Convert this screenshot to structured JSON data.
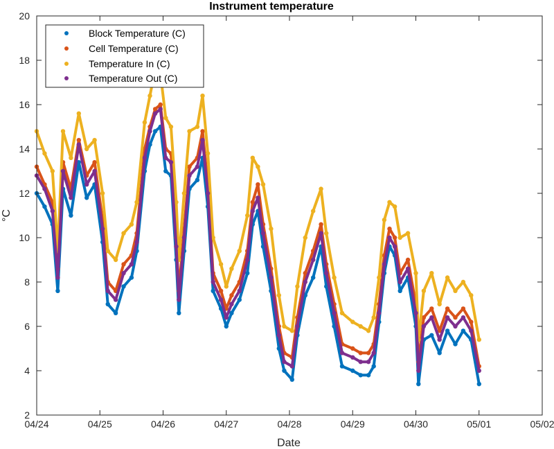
{
  "chart_data": {
    "type": "scatter",
    "title": "Instrument temperature",
    "xlabel": "Date",
    "ylabel": "°C",
    "xlim": [
      "04/24",
      "05/02"
    ],
    "ylim": [
      2,
      20
    ],
    "x_ticks": [
      "04/24",
      "04/25",
      "04/26",
      "04/27",
      "04/28",
      "04/29",
      "04/30",
      "05/01",
      "05/02"
    ],
    "y_ticks": [
      2,
      4,
      6,
      8,
      10,
      12,
      14,
      16,
      18,
      20
    ],
    "grid": false,
    "legend_position": "top-left",
    "series": [
      {
        "name": "Block Temperature (C)",
        "color": "#0072BD",
        "points": [
          [
            "04/24 00:00",
            12.0
          ],
          [
            "04/24 03:00",
            11.4
          ],
          [
            "04/24 06:00",
            10.6
          ],
          [
            "04/24 08:00",
            7.6
          ],
          [
            "04/24 10:00",
            12.2
          ],
          [
            "04/24 13:00",
            11.0
          ],
          [
            "04/24 16:00",
            13.4
          ],
          [
            "04/24 19:00",
            11.8
          ],
          [
            "04/24 22:00",
            12.4
          ],
          [
            "04/25 01:00",
            9.8
          ],
          [
            "04/25 03:00",
            7.0
          ],
          [
            "04/25 06:00",
            6.6
          ],
          [
            "04/25 09:00",
            7.8
          ],
          [
            "04/25 12:00",
            8.2
          ],
          [
            "04/25 14:00",
            9.4
          ],
          [
            "04/25 17:00",
            13.0
          ],
          [
            "04/25 19:00",
            14.2
          ],
          [
            "04/25 21:00",
            14.8
          ],
          [
            "04/25 23:00",
            15.0
          ],
          [
            "04/26 01:00",
            13.0
          ],
          [
            "04/26 03:00",
            12.8
          ],
          [
            "04/26 05:00",
            9.0
          ],
          [
            "04/26 06:00",
            6.6
          ],
          [
            "04/26 08:00",
            9.4
          ],
          [
            "04/26 10:00",
            12.2
          ],
          [
            "04/26 13:00",
            12.6
          ],
          [
            "04/26 15:00",
            13.6
          ],
          [
            "04/26 17:00",
            11.4
          ],
          [
            "04/26 19:00",
            7.6
          ],
          [
            "04/26 22:00",
            6.8
          ],
          [
            "04/27 00:00",
            6.0
          ],
          [
            "04/27 02:00",
            6.6
          ],
          [
            "04/27 05:00",
            7.2
          ],
          [
            "04/27 08:00",
            8.4
          ],
          [
            "04/27 10:00",
            10.6
          ],
          [
            "04/27 12:00",
            11.2
          ],
          [
            "04/27 14:00",
            9.6
          ],
          [
            "04/27 17:00",
            7.6
          ],
          [
            "04/27 20:00",
            5.0
          ],
          [
            "04/27 22:00",
            4.0
          ],
          [
            "04/28 01:00",
            3.6
          ],
          [
            "04/28 03:00",
            5.6
          ],
          [
            "04/28 06:00",
            7.4
          ],
          [
            "04/28 09:00",
            8.2
          ],
          [
            "04/28 12:00",
            9.6
          ],
          [
            "04/28 14:00",
            7.8
          ],
          [
            "04/28 17:00",
            6.0
          ],
          [
            "04/28 20:00",
            4.2
          ],
          [
            "04/29 00:00",
            4.0
          ],
          [
            "04/29 03:00",
            3.8
          ],
          [
            "04/29 06:00",
            3.8
          ],
          [
            "04/29 08:00",
            4.2
          ],
          [
            "04/29 10:00",
            6.2
          ],
          [
            "04/29 12:00",
            8.4
          ],
          [
            "04/29 14:00",
            9.6
          ],
          [
            "04/29 16:00",
            9.2
          ],
          [
            "04/29 18:00",
            7.6
          ],
          [
            "04/29 21:00",
            8.2
          ],
          [
            "04/30 00:00",
            6.0
          ],
          [
            "04/30 01:00",
            3.4
          ],
          [
            "04/30 03:00",
            5.4
          ],
          [
            "04/30 06:00",
            5.6
          ],
          [
            "04/30 09:00",
            4.8
          ],
          [
            "04/30 12:00",
            5.8
          ],
          [
            "04/30 15:00",
            5.2
          ],
          [
            "04/30 18:00",
            5.8
          ],
          [
            "04/30 21:00",
            5.4
          ],
          [
            "05/01 00:00",
            3.4
          ]
        ]
      },
      {
        "name": "Cell Temperature (C)",
        "color": "#D95319",
        "points": [
          [
            "04/24 00:00",
            13.2
          ],
          [
            "04/24 03:00",
            12.4
          ],
          [
            "04/24 06:00",
            11.6
          ],
          [
            "04/24 08:00",
            8.6
          ],
          [
            "04/24 10:00",
            13.4
          ],
          [
            "04/24 13:00",
            12.2
          ],
          [
            "04/24 16:00",
            14.4
          ],
          [
            "04/24 19:00",
            12.8
          ],
          [
            "04/24 22:00",
            13.4
          ],
          [
            "04/25 01:00",
            10.8
          ],
          [
            "04/25 03:00",
            8.0
          ],
          [
            "04/25 06:00",
            7.6
          ],
          [
            "04/25 09:00",
            8.8
          ],
          [
            "04/25 12:00",
            9.2
          ],
          [
            "04/25 14:00",
            10.2
          ],
          [
            "04/25 17:00",
            14.0
          ],
          [
            "04/25 19:00",
            15.0
          ],
          [
            "04/25 21:00",
            15.8
          ],
          [
            "04/25 23:00",
            16.0
          ],
          [
            "04/26 01:00",
            14.0
          ],
          [
            "04/26 03:00",
            13.8
          ],
          [
            "04/26 05:00",
            10.0
          ],
          [
            "04/26 06:00",
            7.6
          ],
          [
            "04/26 08:00",
            10.4
          ],
          [
            "04/26 10:00",
            13.2
          ],
          [
            "04/26 13:00",
            13.6
          ],
          [
            "04/26 15:00",
            14.8
          ],
          [
            "04/26 17:00",
            12.4
          ],
          [
            "04/26 19:00",
            8.4
          ],
          [
            "04/26 22:00",
            7.6
          ],
          [
            "04/27 00:00",
            6.8
          ],
          [
            "04/27 02:00",
            7.4
          ],
          [
            "04/27 05:00",
            8.0
          ],
          [
            "04/27 08:00",
            9.4
          ],
          [
            "04/27 10:00",
            11.6
          ],
          [
            "04/27 12:00",
            12.4
          ],
          [
            "04/27 14:00",
            10.6
          ],
          [
            "04/27 17:00",
            8.6
          ],
          [
            "04/27 20:00",
            6.0
          ],
          [
            "04/27 22:00",
            4.8
          ],
          [
            "04/28 01:00",
            4.6
          ],
          [
            "04/28 03:00",
            6.4
          ],
          [
            "04/28 06:00",
            8.4
          ],
          [
            "04/28 09:00",
            9.4
          ],
          [
            "04/28 12:00",
            10.6
          ],
          [
            "04/28 14:00",
            8.8
          ],
          [
            "04/28 17:00",
            7.0
          ],
          [
            "04/28 20:00",
            5.2
          ],
          [
            "04/29 00:00",
            5.0
          ],
          [
            "04/29 03:00",
            4.8
          ],
          [
            "04/29 06:00",
            4.8
          ],
          [
            "04/29 08:00",
            5.2
          ],
          [
            "04/29 10:00",
            7.0
          ],
          [
            "04/29 12:00",
            9.2
          ],
          [
            "04/29 14:00",
            10.4
          ],
          [
            "04/29 16:00",
            10.0
          ],
          [
            "04/29 18:00",
            8.4
          ],
          [
            "04/29 21:00",
            9.0
          ],
          [
            "04/30 00:00",
            7.0
          ],
          [
            "04/30 01:00",
            4.4
          ],
          [
            "04/30 03:00",
            6.4
          ],
          [
            "04/30 06:00",
            6.8
          ],
          [
            "04/30 09:00",
            5.8
          ],
          [
            "04/30 12:00",
            6.8
          ],
          [
            "04/30 15:00",
            6.4
          ],
          [
            "04/30 18:00",
            6.8
          ],
          [
            "04/30 21:00",
            6.2
          ],
          [
            "05/01 00:00",
            4.2
          ]
        ]
      },
      {
        "name": "Temperature In (C)",
        "color": "#EDB120",
        "points": [
          [
            "04/24 00:00",
            14.8
          ],
          [
            "04/24 03:00",
            13.8
          ],
          [
            "04/24 06:00",
            13.0
          ],
          [
            "04/24 08:00",
            9.4
          ],
          [
            "04/24 10:00",
            14.8
          ],
          [
            "04/24 13:00",
            13.6
          ],
          [
            "04/24 16:00",
            15.6
          ],
          [
            "04/24 19:00",
            14.0
          ],
          [
            "04/24 22:00",
            14.4
          ],
          [
            "04/25 01:00",
            12.0
          ],
          [
            "04/25 03:00",
            9.4
          ],
          [
            "04/25 06:00",
            9.0
          ],
          [
            "04/25 09:00",
            10.2
          ],
          [
            "04/25 12:00",
            10.6
          ],
          [
            "04/25 14:00",
            11.6
          ],
          [
            "04/25 17:00",
            15.2
          ],
          [
            "04/25 19:00",
            16.4
          ],
          [
            "04/25 21:00",
            17.6
          ],
          [
            "04/25 23:00",
            17.4
          ],
          [
            "04/26 01:00",
            15.4
          ],
          [
            "04/26 03:00",
            15.0
          ],
          [
            "04/26 05:00",
            11.6
          ],
          [
            "04/26 06:00",
            9.0
          ],
          [
            "04/26 08:00",
            12.0
          ],
          [
            "04/26 10:00",
            14.8
          ],
          [
            "04/26 13:00",
            15.0
          ],
          [
            "04/26 15:00",
            16.4
          ],
          [
            "04/26 17:00",
            13.8
          ],
          [
            "04/26 19:00",
            10.0
          ],
          [
            "04/26 22:00",
            8.8
          ],
          [
            "04/27 00:00",
            7.8
          ],
          [
            "04/27 02:00",
            8.6
          ],
          [
            "04/27 05:00",
            9.4
          ],
          [
            "04/27 08:00",
            11.0
          ],
          [
            "04/27 10:00",
            13.6
          ],
          [
            "04/27 12:00",
            13.2
          ],
          [
            "04/27 14:00",
            12.4
          ],
          [
            "04/27 17:00",
            10.4
          ],
          [
            "04/27 20:00",
            7.4
          ],
          [
            "04/27 22:00",
            6.0
          ],
          [
            "04/28 01:00",
            5.8
          ],
          [
            "04/28 03:00",
            7.8
          ],
          [
            "04/28 06:00",
            10.0
          ],
          [
            "04/28 09:00",
            11.2
          ],
          [
            "04/28 12:00",
            12.2
          ],
          [
            "04/28 14:00",
            10.2
          ],
          [
            "04/28 17:00",
            8.2
          ],
          [
            "04/28 20:00",
            6.6
          ],
          [
            "04/29 00:00",
            6.2
          ],
          [
            "04/29 03:00",
            6.0
          ],
          [
            "04/29 06:00",
            5.8
          ],
          [
            "04/29 08:00",
            6.4
          ],
          [
            "04/29 10:00",
            8.2
          ],
          [
            "04/29 12:00",
            10.8
          ],
          [
            "04/29 14:00",
            11.6
          ],
          [
            "04/29 16:00",
            11.4
          ],
          [
            "04/29 18:00",
            10.0
          ],
          [
            "04/29 21:00",
            10.2
          ],
          [
            "04/30 00:00",
            8.4
          ],
          [
            "04/30 01:00",
            5.4
          ],
          [
            "04/30 03:00",
            7.6
          ],
          [
            "04/30 06:00",
            8.4
          ],
          [
            "04/30 09:00",
            7.0
          ],
          [
            "04/30 12:00",
            8.2
          ],
          [
            "04/30 15:00",
            7.6
          ],
          [
            "04/30 18:00",
            8.0
          ],
          [
            "04/30 21:00",
            7.4
          ],
          [
            "05/01 00:00",
            5.4
          ]
        ]
      },
      {
        "name": "Temperature Out (C)",
        "color": "#7E2F8E",
        "points": [
          [
            "04/24 00:00",
            12.8
          ],
          [
            "04/24 03:00",
            12.2
          ],
          [
            "04/24 06:00",
            11.2
          ],
          [
            "04/24 08:00",
            8.2
          ],
          [
            "04/24 10:00",
            13.0
          ],
          [
            "04/24 13:00",
            11.8
          ],
          [
            "04/24 16:00",
            14.2
          ],
          [
            "04/24 19:00",
            12.4
          ],
          [
            "04/24 22:00",
            13.0
          ],
          [
            "04/25 01:00",
            10.4
          ],
          [
            "04/25 03:00",
            7.6
          ],
          [
            "04/25 06:00",
            7.2
          ],
          [
            "04/25 09:00",
            8.4
          ],
          [
            "04/25 12:00",
            8.8
          ],
          [
            "04/25 14:00",
            9.8
          ],
          [
            "04/25 17:00",
            13.6
          ],
          [
            "04/25 19:00",
            14.8
          ],
          [
            "04/25 21:00",
            15.6
          ],
          [
            "04/25 23:00",
            15.8
          ],
          [
            "04/26 01:00",
            13.6
          ],
          [
            "04/26 03:00",
            13.4
          ],
          [
            "04/26 05:00",
            9.6
          ],
          [
            "04/26 06:00",
            7.2
          ],
          [
            "04/26 08:00",
            10.0
          ],
          [
            "04/26 10:00",
            12.8
          ],
          [
            "04/26 13:00",
            13.2
          ],
          [
            "04/26 15:00",
            14.4
          ],
          [
            "04/26 17:00",
            12.0
          ],
          [
            "04/26 19:00",
            8.0
          ],
          [
            "04/26 22:00",
            7.2
          ],
          [
            "04/27 00:00",
            6.4
          ],
          [
            "04/27 02:00",
            7.0
          ],
          [
            "04/27 05:00",
            7.6
          ],
          [
            "04/27 08:00",
            9.0
          ],
          [
            "04/27 10:00",
            11.2
          ],
          [
            "04/27 12:00",
            11.8
          ],
          [
            "04/27 14:00",
            10.2
          ],
          [
            "04/27 17:00",
            8.2
          ],
          [
            "04/27 20:00",
            5.6
          ],
          [
            "04/27 22:00",
            4.4
          ],
          [
            "04/28 01:00",
            4.2
          ],
          [
            "04/28 03:00",
            6.0
          ],
          [
            "04/28 06:00",
            8.0
          ],
          [
            "04/28 09:00",
            9.0
          ],
          [
            "04/28 12:00",
            10.2
          ],
          [
            "04/28 14:00",
            8.4
          ],
          [
            "04/28 17:00",
            6.6
          ],
          [
            "04/28 20:00",
            4.8
          ],
          [
            "04/29 00:00",
            4.6
          ],
          [
            "04/29 03:00",
            4.4
          ],
          [
            "04/29 06:00",
            4.4
          ],
          [
            "04/29 08:00",
            4.8
          ],
          [
            "04/29 10:00",
            6.6
          ],
          [
            "04/29 12:00",
            8.8
          ],
          [
            "04/29 14:00",
            10.0
          ],
          [
            "04/29 16:00",
            9.6
          ],
          [
            "04/29 18:00",
            8.0
          ],
          [
            "04/29 21:00",
            8.6
          ],
          [
            "04/30 00:00",
            6.6
          ],
          [
            "04/30 01:00",
            4.0
          ],
          [
            "04/30 03:00",
            6.0
          ],
          [
            "04/30 06:00",
            6.4
          ],
          [
            "04/30 09:00",
            5.4
          ],
          [
            "04/30 12:00",
            6.4
          ],
          [
            "04/30 15:00",
            6.0
          ],
          [
            "04/30 18:00",
            6.4
          ],
          [
            "04/30 21:00",
            5.8
          ],
          [
            "05/01 00:00",
            4.0
          ]
        ]
      }
    ]
  }
}
